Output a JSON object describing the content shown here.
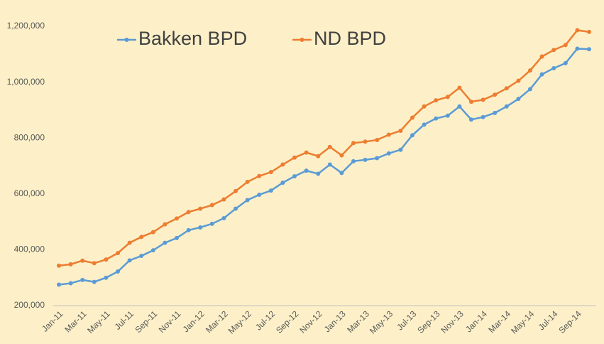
{
  "chart_data": {
    "type": "line",
    "categories": [
      "Jan-11",
      null,
      "Mar-11",
      null,
      "May-11",
      null,
      "Jul-11",
      null,
      "Sep-11",
      null,
      "Nov-11",
      null,
      "Jan-12",
      null,
      "Mar-12",
      null,
      "May-12",
      null,
      "Jul-12",
      null,
      "Sep-12",
      null,
      "Nov-12",
      null,
      "Jan-13",
      null,
      "Mar-13",
      null,
      "May-13",
      null,
      "Jul-13",
      null,
      "Sep-13",
      null,
      "Nov-13",
      null,
      "Jan-14",
      null,
      "Mar-14",
      null,
      "May-14",
      null,
      "Jul-14",
      null,
      "Sep-14",
      null
    ],
    "series": [
      {
        "name": "Bakken BPD",
        "color": "#5b9bd5",
        "values": [
          275000,
          280000,
          292000,
          285000,
          300000,
          322000,
          362000,
          378000,
          398000,
          425000,
          442000,
          470000,
          480000,
          493000,
          513000,
          547000,
          578000,
          597000,
          612000,
          640000,
          663000,
          683000,
          672000,
          705000,
          675000,
          717000,
          722000,
          728000,
          745000,
          758000,
          810000,
          848000,
          870000,
          880000,
          913000,
          866000,
          875000,
          890000,
          913000,
          940000,
          975000,
          1028000,
          1050000,
          1068000,
          1120000,
          1118000
        ]
      },
      {
        "name": "ND BPD",
        "color": "#ed7d31",
        "values": [
          343000,
          348000,
          361000,
          352000,
          365000,
          388000,
          425000,
          446000,
          463000,
          491000,
          512000,
          535000,
          547000,
          560000,
          580000,
          610000,
          643000,
          664000,
          678000,
          705000,
          730000,
          748000,
          735000,
          768000,
          738000,
          782000,
          787000,
          793000,
          812000,
          826000,
          873000,
          913000,
          935000,
          947000,
          980000,
          930000,
          937000,
          955000,
          978000,
          1005000,
          1042000,
          1092000,
          1115000,
          1133000,
          1186000,
          1180000
        ]
      }
    ],
    "ylim": [
      200000,
      1200000
    ],
    "yticks": [
      {
        "value": 200000,
        "label": "200,000"
      },
      {
        "value": 400000,
        "label": "400,000"
      },
      {
        "value": 600000,
        "label": "600,000"
      },
      {
        "value": 800000,
        "label": "800,000"
      },
      {
        "value": 1000000,
        "label": "1,000,000"
      },
      {
        "value": 1200000,
        "label": "1,200,000"
      }
    ],
    "grid": false,
    "legend": "top"
  }
}
